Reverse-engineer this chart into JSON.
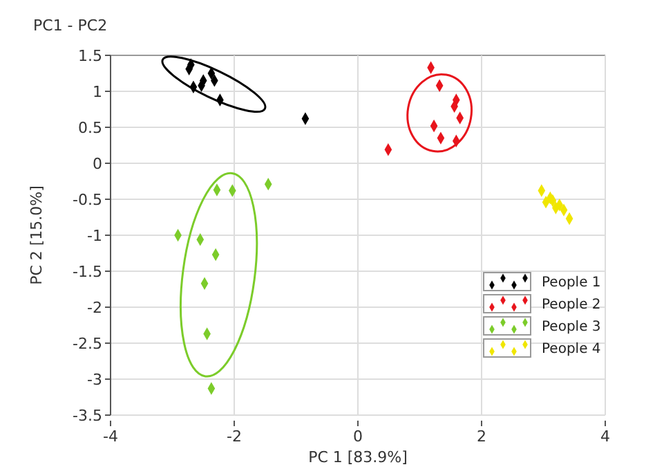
{
  "chart_data": {
    "type": "scatter",
    "title": "PC1 - PC2",
    "xlabel": "PC 1 [83.9%]",
    "ylabel": "PC 2 [15.0%]",
    "xlim": [
      -4,
      4
    ],
    "xticks": [
      -4,
      -2,
      0,
      2,
      4
    ],
    "ylim": [
      -3.5,
      1.5
    ],
    "yticks": [
      -3.5,
      -3,
      -2.5,
      -2,
      -1.5,
      -1,
      -0.5,
      0,
      0.5,
      1,
      1.5
    ],
    "grid": true,
    "legend": "bottom right",
    "marker": "diamond",
    "series": [
      {
        "name": "People 1",
        "color": "#000000",
        "x": [
          -2.7,
          -2.73,
          -2.37,
          -2.5,
          -2.32,
          -2.53,
          -2.66,
          -2.23,
          -0.85
        ],
        "values": [
          1.37,
          1.31,
          1.25,
          1.15,
          1.15,
          1.08,
          1.06,
          0.88,
          0.62
        ]
      },
      {
        "name": "People 2",
        "color": "#e8141c",
        "x": [
          1.18,
          1.32,
          1.59,
          1.56,
          1.65,
          1.23,
          1.34,
          1.59,
          0.49
        ],
        "values": [
          1.33,
          1.08,
          0.88,
          0.79,
          0.63,
          0.52,
          0.35,
          0.31,
          0.19
        ]
      },
      {
        "name": "People 3",
        "color": "#7ccc2a",
        "x": [
          -2.28,
          -2.03,
          -1.45,
          -2.91,
          -2.55,
          -2.3,
          -2.48,
          -2.44,
          -2.37
        ],
        "values": [
          -0.37,
          -0.38,
          -0.29,
          -1.0,
          -1.06,
          -1.27,
          -1.67,
          -2.37,
          -3.13
        ]
      },
      {
        "name": "People 4",
        "color": "#f0e600",
        "x": [
          2.97,
          3.11,
          3.04,
          3.15,
          3.26,
          3.2,
          3.33,
          3.42
        ],
        "values": [
          -0.38,
          -0.48,
          -0.54,
          -0.52,
          -0.58,
          -0.62,
          -0.65,
          -0.77
        ]
      }
    ]
  }
}
